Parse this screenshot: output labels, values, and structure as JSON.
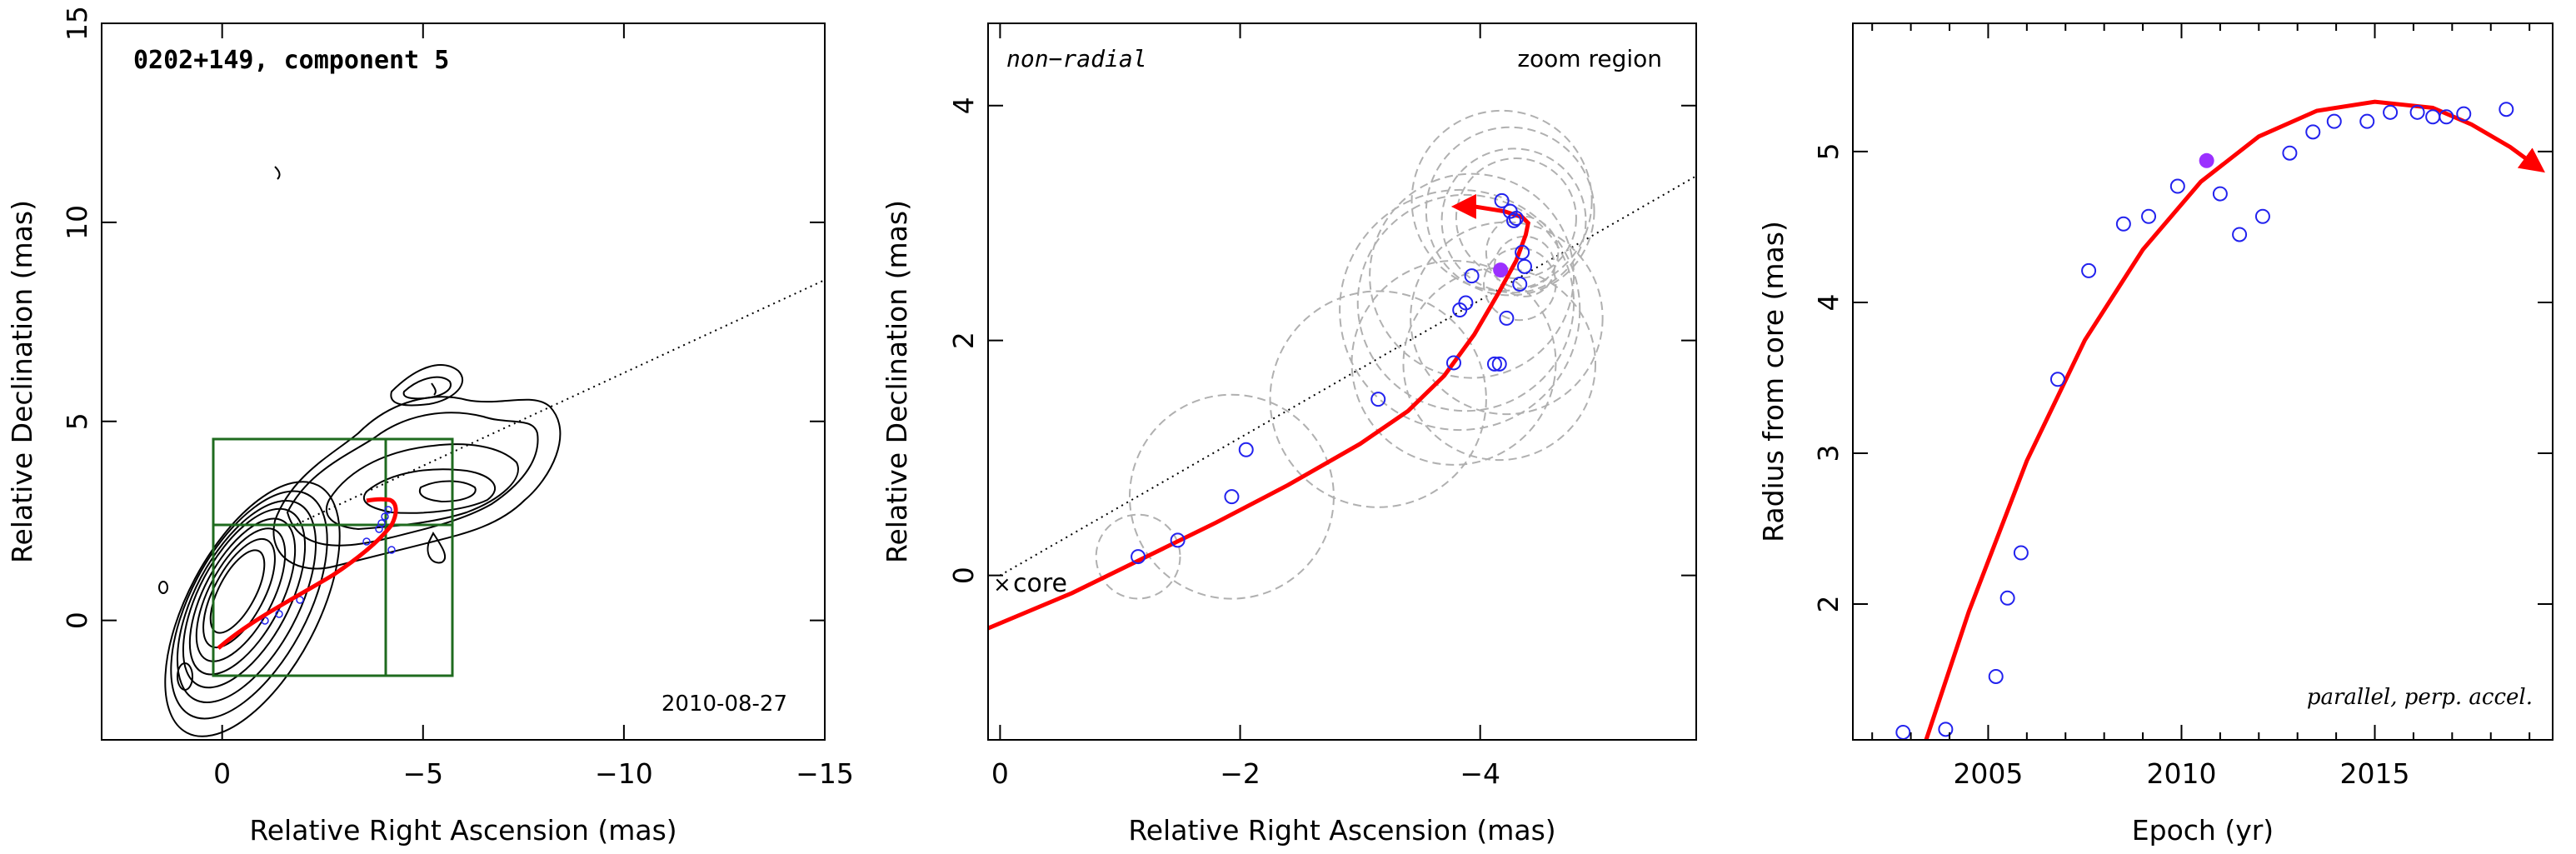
{
  "colors": {
    "fit": "#ff0000",
    "points": "#2222ee",
    "filled_point": "#9b30ff",
    "box": "#1f6b1f",
    "circles": "#b0b0b0",
    "contour": "#000000"
  },
  "panel1": {
    "title": "0202+149, component 5",
    "date": "2010-08-27",
    "xlabel": "Relative Right Ascension (mas)",
    "ylabel": "Relative Declination (mas)",
    "xticks": [
      "0",
      "−5",
      "−10",
      "−15"
    ],
    "yticks": [
      "0",
      "5",
      "10",
      "15"
    ]
  },
  "panel2": {
    "title": "non−radial",
    "zoom_label": "zoom region",
    "core_label": "core",
    "xlabel": "Relative Right Ascension (mas)",
    "ylabel": "Relative Declination (mas)",
    "xticks": [
      "0",
      "−2",
      "−4"
    ],
    "yticks": [
      "0",
      "2",
      "4"
    ]
  },
  "panel3": {
    "note": "parallel, perp. accel.",
    "xlabel": "Epoch (yr)",
    "ylabel": "Radius from core (mas)",
    "xticks": [
      "2005",
      "2010",
      "2015"
    ],
    "yticks": [
      "2",
      "3",
      "4",
      "5"
    ]
  },
  "chart_data": [
    {
      "type": "scatter",
      "title": "0202+149, component 5",
      "xlabel": "Relative Right Ascension (mas)",
      "ylabel": "Relative Declination (mas)",
      "xlim": [
        3,
        -15
      ],
      "ylim": [
        -3,
        15
      ],
      "annotations": [
        "2010-08-27"
      ],
      "zoom_box": {
        "x": [
          0,
          -5.8
        ],
        "y": [
          -1.3,
          4.7
        ],
        "crosshair": {
          "x": -4.2,
          "y": 2.6
        }
      },
      "jet_axis_through_core": {
        "x": [
          -1.9,
          -15
        ],
        "y": [
          0.25,
          8.7
        ]
      },
      "fit_track": {
        "x": [
          0,
          -1,
          -2,
          -3,
          -4,
          -4.4,
          -4.2,
          -3.8
        ],
        "y": [
          -0.45,
          0.05,
          0.7,
          1.5,
          2.4,
          3.0,
          3.1,
          3.15
        ]
      }
    },
    {
      "type": "scatter",
      "title": "non−radial",
      "xlabel": "Relative Right Ascension (mas)",
      "ylabel": "Relative Declination (mas)",
      "xlim": [
        0.1,
        -5.8
      ],
      "ylim": [
        -1.4,
        4.7
      ],
      "annotations": [
        "zoom region",
        "core"
      ],
      "series": [
        {
          "x": [
            -1.15,
            -1.48,
            -1.93,
            -2.05,
            -3.15,
            -3.78,
            -3.83,
            -3.88,
            -3.93,
            -4.12,
            -4.16,
            -4.18,
            -4.22,
            -4.25,
            -4.28,
            -4.3,
            -4.33,
            -4.35,
            -4.37
          ],
          "y": [
            0.16,
            0.3,
            0.67,
            1.07,
            1.5,
            1.81,
            2.26,
            2.32,
            2.55,
            1.8,
            1.8,
            3.19,
            2.19,
            3.1,
            3.02,
            3.04,
            2.48,
            2.75,
            2.63
          ]
        },
        {
          "x": [
            -4.17
          ],
          "y": [
            2.6
          ]
        }
      ],
      "circle_radii": [
        0.35,
        0.85,
        0.9,
        0.85,
        1.0,
        0.9,
        0.85,
        0.8,
        0.75,
        0.8,
        0.7,
        0.6,
        0.5,
        0.3,
        0.3,
        0.25
      ],
      "jet_axis": {
        "x": [
          0,
          -5.8
        ],
        "y": [
          0,
          3.4
        ]
      },
      "fit": {
        "x": [
          0.1,
          -0.6,
          -1.2,
          -1.8,
          -2.4,
          -3.0,
          -3.4,
          -3.7,
          -3.95,
          -4.15,
          -4.3,
          -4.38,
          -4.4,
          -4.35,
          -4.2,
          -3.95,
          -3.8
        ],
        "y": [
          -0.45,
          -0.15,
          0.15,
          0.45,
          0.77,
          1.12,
          1.4,
          1.7,
          2.05,
          2.4,
          2.68,
          2.9,
          3.0,
          3.05,
          3.1,
          3.14,
          3.14
        ]
      }
    },
    {
      "type": "scatter",
      "xlabel": "Epoch (yr)",
      "ylabel": "Radius from core (mas)",
      "xlim": [
        2001.5,
        2019.6
      ],
      "ylim": [
        1.1,
        5.85
      ],
      "annotations": [
        "parallel, perp. accel."
      ],
      "series": [
        {
          "x": [
            2002.8,
            2003.9,
            2005.2,
            2005.5,
            2005.85,
            2006.8,
            2007.6,
            2008.5,
            2009.15,
            2009.9,
            2011.0,
            2011.5,
            2012.1,
            2012.8,
            2013.4,
            2013.95,
            2014.8,
            2015.4,
            2016.1,
            2016.5,
            2016.85,
            2017.3,
            2018.4
          ],
          "y": [
            1.15,
            1.17,
            1.52,
            2.04,
            2.34,
            3.49,
            4.21,
            4.52,
            4.57,
            4.77,
            4.72,
            4.45,
            4.57,
            4.99,
            5.13,
            5.2,
            5.2,
            5.26,
            5.26,
            5.23,
            5.23,
            5.25,
            5.28
          ]
        },
        {
          "x": [
            2010.65
          ],
          "y": [
            4.94
          ]
        }
      ],
      "fit": {
        "x": [
          2003.2,
          2004.5,
          2006,
          2007.5,
          2009,
          2010.5,
          2012,
          2013.5,
          2015,
          2016.5,
          2017.5,
          2018.5,
          2019.3
        ],
        "y": [
          0.95,
          1.95,
          2.95,
          3.75,
          4.35,
          4.8,
          5.1,
          5.27,
          5.33,
          5.29,
          5.18,
          5.03,
          4.88
        ]
      }
    }
  ]
}
